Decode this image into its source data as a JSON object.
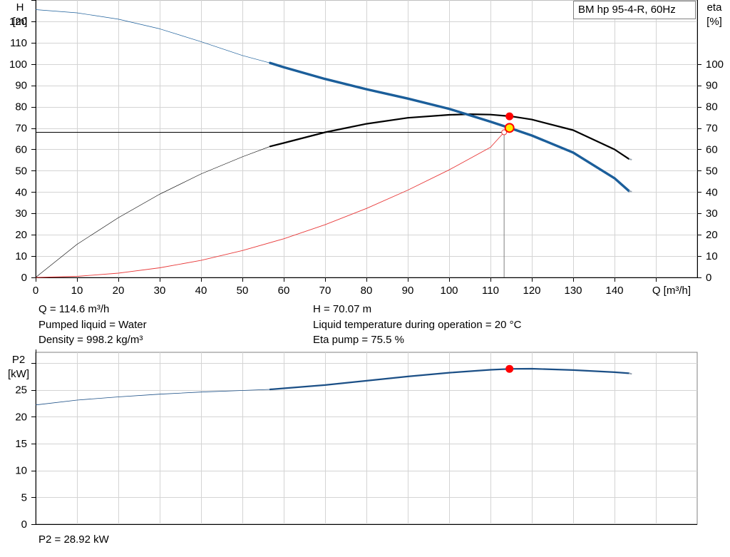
{
  "pump_label": "BM hp 95-4-R, 60Hz",
  "info": {
    "flow": "Q = 114.6 m³/h",
    "head": "H = 70.07 m",
    "liquid": "Pumped liquid = Water",
    "temperature": "Liquid temperature during operation = 20 °C",
    "density": "Density = 998.2 kg/m³",
    "eta_pump": "Eta pump = 75.5 %",
    "p2": "P2 = 28.92 kW"
  },
  "colors": {
    "head_curve": "#1b5e9a",
    "eta_curve": "#000000",
    "p2_curve": "#1b4f86",
    "system_curve": "#e83a3a",
    "duty_point": "#ff0000",
    "operating_point": "#ffee00",
    "grid": "#d4d4d4"
  },
  "chart_data": [
    {
      "type": "line",
      "title": "",
      "xlabel": "Q [m³/h]",
      "ylabel": "H\n[m]",
      "y2label": "eta\n[%]",
      "xlim": [
        0,
        160
      ],
      "ylim": [
        0,
        130
      ],
      "y2lim": [
        0,
        130
      ],
      "x_ticks": [
        0,
        10,
        20,
        30,
        40,
        50,
        60,
        70,
        80,
        90,
        100,
        110,
        120,
        130,
        140
      ],
      "y_ticks": [
        0,
        10,
        20,
        30,
        40,
        50,
        60,
        70,
        80,
        90,
        100,
        110,
        120
      ],
      "y2_ticks": [
        0,
        10,
        20,
        30,
        40,
        50,
        60,
        70,
        80,
        90,
        100
      ],
      "grid": true,
      "series": [
        {
          "name": "H",
          "axis": "left",
          "bold_from_x": 56.7,
          "x": [
            0,
            10,
            20,
            30,
            40,
            50,
            56.7,
            60,
            70,
            80,
            90,
            100,
            110,
            115,
            120,
            130,
            140,
            143.5
          ],
          "y": [
            125.5,
            124,
            121,
            116.5,
            110.5,
            104,
            100.5,
            98.5,
            93,
            88.2,
            83.8,
            79,
            73,
            69.8,
            66.5,
            58.5,
            46.5,
            40.5
          ]
        },
        {
          "name": "eta",
          "axis": "right",
          "bold_from_x": 56.7,
          "x": [
            0,
            10,
            20,
            30,
            40,
            50,
            56.7,
            60,
            70,
            80,
            90,
            100,
            105,
            110,
            115,
            120,
            130,
            140,
            143.5
          ],
          "y": [
            0,
            15.5,
            28,
            39,
            48.5,
            56.5,
            61.4,
            63,
            68,
            72,
            74.8,
            76.2,
            76.5,
            76.3,
            75.5,
            74,
            69,
            60,
            55.5
          ]
        },
        {
          "name": "System curve",
          "axis": "left",
          "x": [
            0,
            10,
            20,
            30,
            40,
            50,
            60,
            70,
            80,
            90,
            100,
            110,
            113.3
          ],
          "y": [
            0,
            0.5,
            2,
            4.5,
            8,
            12.6,
            18.1,
            24.7,
            32.3,
            40.9,
            50.4,
            61,
            68
          ]
        }
      ],
      "duty_point": {
        "q": 114.6,
        "h": 70.07
      },
      "eta_point": {
        "q": 114.6,
        "eta": 75.5
      },
      "reference_point": {
        "q": 113.3,
        "h": 68
      }
    },
    {
      "type": "line",
      "title": "",
      "xlabel": "",
      "ylabel": "P2\n[kW]",
      "xlim": [
        0,
        160
      ],
      "ylim": [
        0,
        32
      ],
      "y_ticks": [
        0,
        5,
        10,
        15,
        20,
        25
      ],
      "grid": true,
      "series": [
        {
          "name": "P2",
          "bold_from_x": 56.7,
          "x": [
            0,
            10,
            20,
            30,
            40,
            50,
            56.7,
            60,
            70,
            80,
            90,
            100,
            110,
            115,
            120,
            130,
            140,
            143.5
          ],
          "y": [
            22.2,
            23.1,
            23.7,
            24.2,
            24.6,
            24.9,
            25.1,
            25.3,
            25.9,
            26.7,
            27.5,
            28.2,
            28.75,
            28.92,
            28.95,
            28.7,
            28.3,
            28.1
          ]
        }
      ],
      "duty_point": {
        "q": 114.6,
        "p2": 28.92
      }
    }
  ]
}
